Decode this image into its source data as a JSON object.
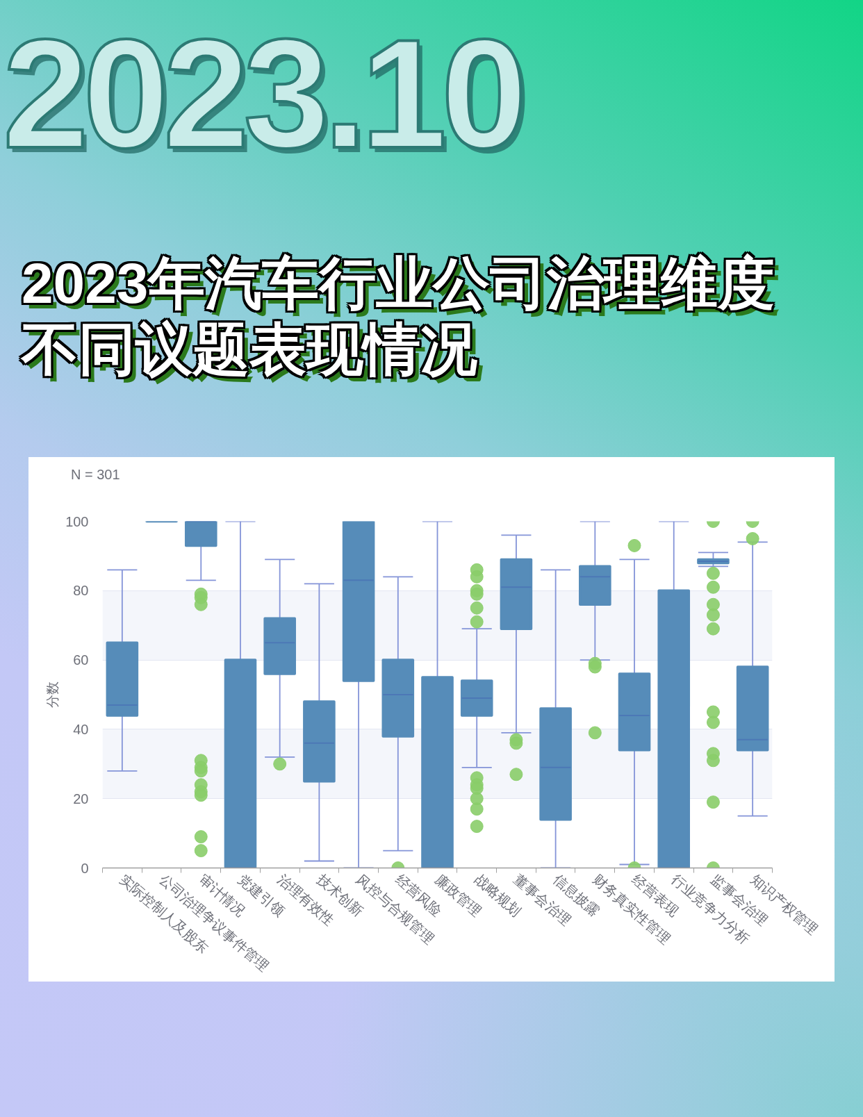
{
  "chart_data": {
    "type": "box",
    "title": "2023年汽车行业公司治理维度不同议题表现情况",
    "annotations": [
      "2023.10",
      "N = 301"
    ],
    "ylabel": "分数",
    "categories": [
      "实际控制人及股东",
      "公司治理争议事件管理",
      "审计情况",
      "党建引领",
      "治理有效性",
      "技术创新",
      "风控与合规管理",
      "经营风险",
      "廉政管理",
      "战略规划",
      "董事会治理",
      "信息披露",
      "财务真实性管理",
      "经营表现",
      "行业竞争力分析",
      "监事会治理",
      "知识产权管理"
    ],
    "color": "#568cb9",
    "boxes": [
      {
        "low": 28,
        "q1": 44,
        "median": 47,
        "q3": 65,
        "high": 86
      },
      {
        "low": 100,
        "q1": 100,
        "median": 100,
        "q3": 100,
        "high": 100
      },
      {
        "low": 83,
        "q1": 93,
        "median": 100,
        "q3": 100,
        "high": 100,
        "outliers": [
          79,
          78,
          76,
          31,
          29,
          28,
          24,
          22,
          21,
          9,
          5
        ]
      },
      {
        "low": 0,
        "q1": 0,
        "median": 0,
        "q3": 60,
        "high": 100
      },
      {
        "low": 32,
        "q1": 56,
        "median": 65,
        "q3": 72,
        "high": 89,
        "outliers": [
          30
        ]
      },
      {
        "low": 2,
        "q1": 25,
        "median": 36,
        "q3": 48,
        "high": 82
      },
      {
        "low": 0,
        "q1": 54,
        "median": 83,
        "q3": 100,
        "high": 100
      },
      {
        "low": 5,
        "q1": 38,
        "median": 50,
        "q3": 60,
        "high": 84,
        "outliers": [
          0
        ]
      },
      {
        "low": 0,
        "q1": 0,
        "median": 0,
        "q3": 55,
        "high": 100
      },
      {
        "low": 29,
        "q1": 44,
        "median": 49,
        "q3": 54,
        "high": 69,
        "outliers": [
          86,
          84,
          80,
          79,
          75,
          71,
          26,
          24,
          23,
          20,
          17,
          12
        ]
      },
      {
        "low": 39,
        "q1": 69,
        "median": 81,
        "q3": 89,
        "high": 96,
        "outliers": [
          37,
          36,
          27
        ]
      },
      {
        "low": 0,
        "q1": 14,
        "median": 29,
        "q3": 46,
        "high": 86
      },
      {
        "low": 60,
        "q1": 76,
        "median": 84,
        "q3": 87,
        "high": 100,
        "outliers": [
          59,
          58,
          39
        ]
      },
      {
        "low": 1,
        "q1": 34,
        "median": 44,
        "q3": 56,
        "high": 89,
        "outliers": [
          93,
          0
        ]
      },
      {
        "low": 0,
        "q1": 0,
        "median": 0,
        "q3": 80,
        "high": 100
      },
      {
        "low": 87,
        "q1": 88,
        "median": 88.5,
        "q3": 89,
        "high": 91,
        "outliers": [
          100,
          85,
          81,
          76,
          73,
          69,
          45,
          42,
          33,
          31,
          19,
          0
        ]
      },
      {
        "low": 15,
        "q1": 34,
        "median": 37,
        "q3": 58,
        "high": 94,
        "outliers": [
          100,
          95
        ]
      }
    ],
    "ylim": [
      0,
      100
    ],
    "yticks": [
      0,
      20,
      40,
      60,
      80,
      100
    ],
    "grid": "y"
  }
}
